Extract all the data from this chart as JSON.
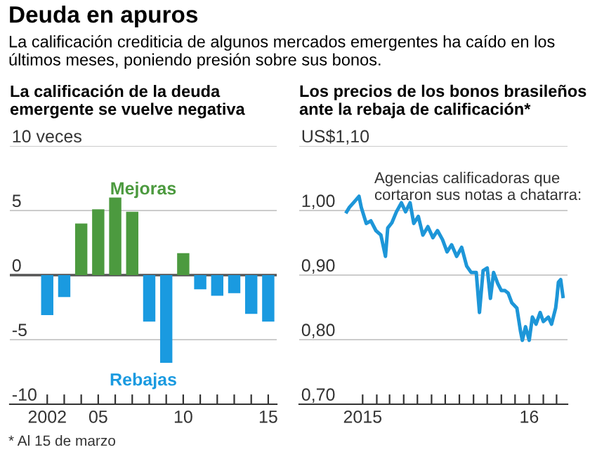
{
  "chart_data": [
    {
      "type": "other",
      "title": "Deuda en apuros",
      "subtitle": "La calificación crediticia de algunos mercados emergentes ha caído en los últimos meses, poniendo presión sobre sus bonos.",
      "annotations": [
        "* Al 15 de marzo"
      ]
    },
    {
      "type": "bar",
      "title": "La calificación de la deuda\nemergente se vuelve negativa",
      "x": [
        2002,
        2003,
        2004,
        2005,
        2006,
        2007,
        2008,
        2009,
        2010,
        2011,
        2012,
        2013,
        2014,
        2015
      ],
      "values": [
        -3.1,
        -1.7,
        4.0,
        5.1,
        6.0,
        4.9,
        -3.6,
        -6.8,
        1.7,
        -1.1,
        -1.6,
        -1.4,
        -3.0,
        -3.6
      ],
      "colors": [
        "#1a9ae0",
        "#1a9ae0",
        "#4c9a3f",
        "#4c9a3f",
        "#4c9a3f",
        "#4c9a3f",
        "#1a9ae0",
        "#1a9ae0",
        "#4c9a3f",
        "#1a9ae0",
        "#1a9ae0",
        "#1a9ae0",
        "#1a9ae0",
        "#1a9ae0"
      ],
      "xlim": [
        1999.8,
        2015.5
      ],
      "xticks": [
        {
          "value": 2002,
          "label": "2002"
        },
        {
          "value": 2003,
          "label": null
        },
        {
          "value": 2004,
          "label": null
        },
        {
          "value": 2005,
          "label": "05"
        },
        {
          "value": 2006,
          "label": null
        },
        {
          "value": 2007,
          "label": null
        },
        {
          "value": 2008,
          "label": null
        },
        {
          "value": 2009,
          "label": null
        },
        {
          "value": 2010,
          "label": "10"
        },
        {
          "value": 2011,
          "label": null
        },
        {
          "value": 2012,
          "label": null
        },
        {
          "value": 2013,
          "label": null
        },
        {
          "value": 2014,
          "label": null
        },
        {
          "value": 2015,
          "label": "15"
        }
      ],
      "ylim": [
        -10,
        10
      ],
      "yticks": [
        {
          "value": 10,
          "label": "10 veces"
        },
        5,
        0,
        -5,
        -10
      ],
      "grid": "y",
      "ref_lines": [
        {
          "axis": "y",
          "value": 0,
          "color": "#555555"
        }
      ],
      "annotations": [
        "Mejoras",
        "Rebajas"
      ]
    },
    {
      "type": "line",
      "title": "Los precios de los bonos brasileños\nante la rebaja de calificación*",
      "series": [
        {
          "color": "#1d96d8",
          "x": [
            "2014-11-27",
            "2014-12-03",
            "2014-12-13",
            "2014-12-24",
            "2014-12-29",
            "2015-01-09",
            "2015-01-19",
            "2015-01-30",
            "2015-02-10",
            "2015-02-20",
            "2015-02-25",
            "2015-03-06",
            "2015-03-16",
            "2015-03-27",
            "2015-04-05",
            "2015-04-15",
            "2015-04-23",
            "2015-05-03",
            "2015-05-13",
            "2015-05-24",
            "2015-06-04",
            "2015-06-14",
            "2015-06-25",
            "2015-07-05",
            "2015-07-15",
            "2015-07-26",
            "2015-08-06",
            "2015-08-17",
            "2015-08-27",
            "2015-09-07",
            "2015-09-14",
            "2015-09-22",
            "2015-10-01",
            "2015-10-08",
            "2015-10-15",
            "2015-10-24",
            "2015-11-01",
            "2015-11-09",
            "2015-11-16",
            "2015-11-24",
            "2015-12-05",
            "2015-12-13",
            "2015-12-17",
            "2015-12-24",
            "2016-01-01",
            "2016-01-08",
            "2016-01-16",
            "2016-01-25",
            "2016-02-01",
            "2016-02-12",
            "2016-02-19",
            "2016-02-28",
            "2016-03-02",
            "2016-03-05",
            "2016-03-10",
            "2016-03-15"
          ],
          "values": [
            0.998,
            1.005,
            1.013,
            1.022,
            1.005,
            0.98,
            0.984,
            0.969,
            0.962,
            0.929,
            0.973,
            0.981,
            0.998,
            1.012,
            0.998,
            1.012,
            0.98,
            0.991,
            0.962,
            0.975,
            0.958,
            0.969,
            0.955,
            0.936,
            0.947,
            0.929,
            0.943,
            0.914,
            0.904,
            0.904,
            0.842,
            0.907,
            0.911,
            0.864,
            0.904,
            0.887,
            0.876,
            0.876,
            0.872,
            0.857,
            0.849,
            0.813,
            0.799,
            0.82,
            0.799,
            0.835,
            0.824,
            0.842,
            0.828,
            0.835,
            0.824,
            0.849,
            0.867,
            0.889,
            0.893,
            0.867
          ]
        }
      ],
      "xlim": [
        "2014-08-15",
        "2016-03-25"
      ],
      "xticks": [
        {
          "value": "2015-01-01",
          "label": "2015"
        },
        {
          "value": "2015-02-01",
          "label": null
        },
        {
          "value": "2015-03-01",
          "label": null
        },
        {
          "value": "2015-04-01",
          "label": null
        },
        {
          "value": "2015-05-01",
          "label": null
        },
        {
          "value": "2015-06-01",
          "label": null
        },
        {
          "value": "2015-07-01",
          "label": null
        },
        {
          "value": "2015-08-01",
          "label": null
        },
        {
          "value": "2015-09-01",
          "label": null
        },
        {
          "value": "2015-10-01",
          "label": null
        },
        {
          "value": "2015-11-01",
          "label": null
        },
        {
          "value": "2015-12-01",
          "label": null
        },
        {
          "value": "2016-01-01",
          "label": "16"
        },
        {
          "value": "2016-02-01",
          "label": null
        },
        {
          "value": "2016-03-01",
          "label": null
        }
      ],
      "ylim": [
        0.7,
        1.1
      ],
      "yticks": [
        {
          "value": 1.1,
          "label": "US$1,10"
        },
        {
          "value": 1.0,
          "label": "1,00"
        },
        {
          "value": 0.9,
          "label": "0,90"
        },
        {
          "value": 0.8,
          "label": "0,80"
        },
        {
          "value": 0.7,
          "label": "0,70"
        }
      ],
      "grid": "y",
      "annotations": [
        "Agencias calificadoras que\ncortaron sus notas a chatarra:"
      ]
    }
  ]
}
